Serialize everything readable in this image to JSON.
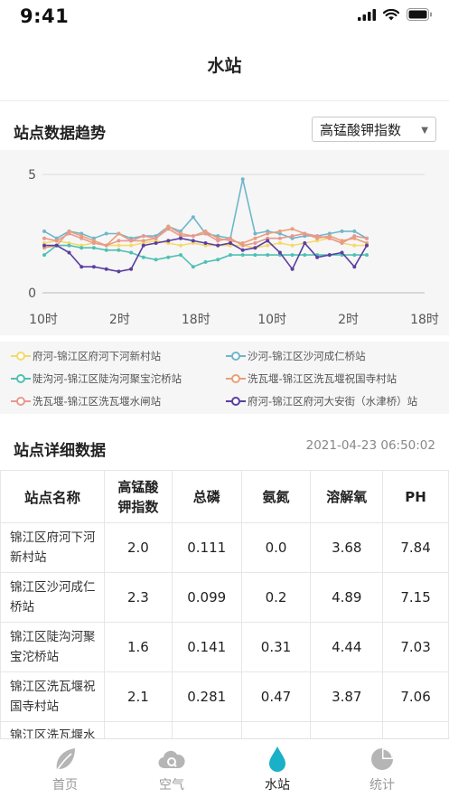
{
  "status_bar": {
    "time": "9:41"
  },
  "nav": {
    "title": "水站"
  },
  "trend": {
    "title": "站点数据趋势",
    "selected_metric": "高锰酸钾指数"
  },
  "chart_data": {
    "type": "line",
    "y_ticks": [
      "5",
      "0"
    ],
    "ylim": [
      0,
      5
    ],
    "x_tick_labels": [
      "10时",
      "2时",
      "18时",
      "10时",
      "2时",
      "18时"
    ],
    "points_per_series": 27,
    "series": [
      {
        "name": "府河-锦江区府河下河新村站",
        "color": "#f5d96a",
        "values": [
          2.1,
          2.2,
          2.1,
          2.0,
          2.1,
          2.0,
          2.0,
          2.0,
          2.1,
          2.2,
          2.1,
          2.0,
          2.1,
          2.0,
          2.0,
          2.0,
          2.0,
          1.9,
          2.0,
          2.1,
          2.0,
          2.1,
          2.2,
          2.3,
          2.1,
          2.0,
          2.0
        ]
      },
      {
        "name": "沙河-锦江区沙河成仁桥站",
        "color": "#6fb6cc",
        "values": [
          2.6,
          2.3,
          2.6,
          2.5,
          2.3,
          2.5,
          2.5,
          2.3,
          2.4,
          2.4,
          2.8,
          2.6,
          3.2,
          2.5,
          2.4,
          2.3,
          4.8,
          2.5,
          2.6,
          2.5,
          2.3,
          2.4,
          2.4,
          2.5,
          2.6,
          2.6,
          2.3
        ]
      },
      {
        "name": "陡沟河-锦江区陡沟河聚宝沱桥站",
        "color": "#4fc0b5",
        "values": [
          1.6,
          2.0,
          2.0,
          1.9,
          1.9,
          1.8,
          1.8,
          1.7,
          1.5,
          1.4,
          1.5,
          1.6,
          1.1,
          1.3,
          1.4,
          1.6,
          1.6,
          1.6,
          1.6,
          1.6,
          1.6,
          1.6,
          1.6,
          1.6,
          1.6,
          1.6,
          1.6
        ]
      },
      {
        "name": "洗瓦堰-锦江区洗瓦堰祝国寺村站",
        "color": "#e8a07a",
        "values": [
          1.9,
          2.0,
          2.6,
          2.4,
          2.2,
          2.0,
          2.5,
          2.2,
          2.2,
          2.3,
          2.8,
          2.5,
          2.4,
          2.6,
          2.3,
          2.2,
          2.1,
          2.3,
          2.5,
          2.6,
          2.7,
          2.5,
          2.3,
          2.4,
          2.2,
          2.3,
          2.1
        ]
      },
      {
        "name": "洗瓦堰-锦江区洗瓦堰水闸站",
        "color": "#e7998f",
        "values": [
          2.3,
          2.2,
          2.5,
          2.3,
          2.1,
          2.0,
          2.2,
          2.2,
          2.4,
          2.3,
          2.7,
          2.4,
          2.4,
          2.5,
          2.2,
          2.3,
          2.0,
          2.1,
          2.3,
          2.3,
          2.4,
          2.5,
          2.4,
          2.3,
          2.1,
          2.4,
          2.3
        ]
      },
      {
        "name": "府河-锦江区府河大安街（水津桥）站",
        "color": "#5b3fa0",
        "values": [
          2.0,
          2.0,
          1.7,
          1.1,
          1.1,
          1.0,
          0.9,
          1.0,
          2.0,
          2.1,
          2.2,
          2.3,
          2.2,
          2.1,
          2.0,
          2.1,
          1.8,
          1.9,
          2.2,
          1.7,
          1.0,
          2.1,
          1.5,
          1.6,
          1.7,
          1.1,
          2.0
        ]
      }
    ]
  },
  "details": {
    "title": "站点详细数据",
    "timestamp": "2021-04-23 06:50:02",
    "headers": [
      "站点名称",
      "高锰酸钾指数",
      "总磷",
      "氨氮",
      "溶解氧",
      "PH"
    ],
    "rows": [
      {
        "name": "锦江区府河下河新村站",
        "values": [
          "2.0",
          "0.111",
          "0.0",
          "3.68",
          "7.84"
        ]
      },
      {
        "name": "锦江区沙河成仁桥站",
        "values": [
          "2.3",
          "0.099",
          "0.2",
          "4.89",
          "7.15"
        ]
      },
      {
        "name": "锦江区陡沟河聚宝沱桥站",
        "values": [
          "1.6",
          "0.141",
          "0.31",
          "4.44",
          "7.03"
        ]
      },
      {
        "name": "锦江区洗瓦堰祝国寺村站",
        "values": [
          "2.1",
          "0.281",
          "0.47",
          "3.87",
          "7.06"
        ]
      },
      {
        "name": "锦江区洗瓦堰水",
        "values": [
          "",
          "",
          "",
          "",
          ""
        ]
      }
    ]
  },
  "tabbar": {
    "tabs": [
      {
        "label": "首页",
        "icon": "leaf-icon"
      },
      {
        "label": "空气",
        "icon": "cloud-q-icon"
      },
      {
        "label": "水站",
        "icon": "water-drop-icon"
      },
      {
        "label": "统计",
        "icon": "pie-chart-icon"
      }
    ],
    "active_index": 2,
    "active_color": "#1ab0c8"
  }
}
